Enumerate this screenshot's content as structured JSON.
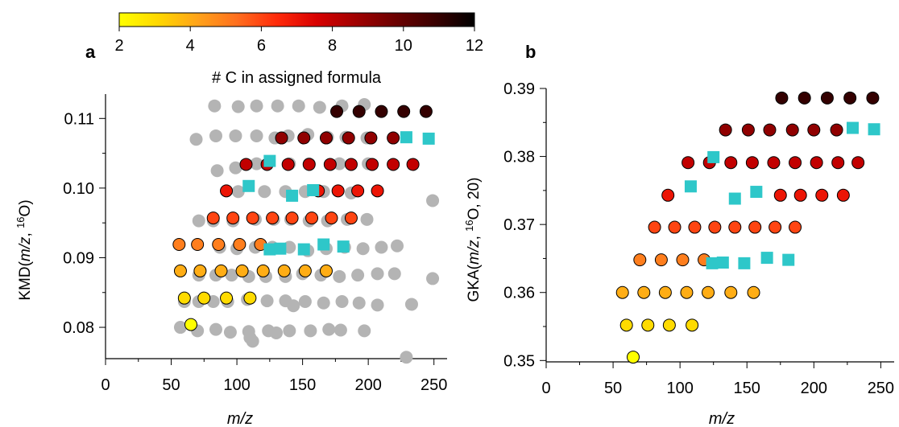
{
  "colorbar": {
    "label": "# C in assigned formula",
    "ticks": [
      "2",
      "4",
      "6",
      "8",
      "10",
      "12"
    ],
    "range": [
      2,
      12
    ],
    "colormap": [
      "#ffff00",
      "#ffd700",
      "#ffa21a",
      "#ff6e1e",
      "#ff2a0a",
      "#d80000",
      "#a00000",
      "#6b0000",
      "#3a0000",
      "#000000"
    ]
  },
  "chart_data": [
    {
      "panel_label": "a",
      "type": "scatter",
      "xlabel": "m/z",
      "ylabel": "KMD(m/z, 16O)",
      "xlim": [
        0,
        260
      ],
      "ylim": [
        0.0755,
        0.1135
      ],
      "xticks": [
        "0",
        "50",
        "100",
        "150",
        "200",
        "250"
      ],
      "xtick_values": [
        0,
        50,
        100,
        150,
        200,
        250
      ],
      "yticks": [
        "0.08",
        "0.09",
        "0.10",
        "0.11"
      ],
      "ytick_values": [
        0.08,
        0.09,
        0.1,
        0.11
      ],
      "series": [
        {
          "style": "grey-circle",
          "color": "#b4b4b4",
          "points": [
            [
              57,
              0.08
            ],
            [
              70,
              0.0795
            ],
            [
              84,
              0.0797
            ],
            [
              95,
              0.0793
            ],
            [
              109,
              0.0794
            ],
            [
              110,
              0.0785
            ],
            [
              112,
              0.078
            ],
            [
              124,
              0.0795
            ],
            [
              130,
              0.0792
            ],
            [
              140,
              0.0795
            ],
            [
              156,
              0.0795
            ],
            [
              170,
              0.0797
            ],
            [
              179,
              0.0796
            ],
            [
              197,
              0.0795
            ],
            [
              60,
              0.0837
            ],
            [
              71,
              0.0837
            ],
            [
              82,
              0.0837
            ],
            [
              93,
              0.0837
            ],
            [
              108,
              0.084
            ],
            [
              123,
              0.0838
            ],
            [
              137,
              0.0838
            ],
            [
              143,
              0.0831
            ],
            [
              152,
              0.0837
            ],
            [
              166,
              0.0835
            ],
            [
              180,
              0.0837
            ],
            [
              193,
              0.0835
            ],
            [
              207,
              0.0832
            ],
            [
              233,
              0.0833
            ],
            [
              71,
              0.0875
            ],
            [
              84,
              0.0875
            ],
            [
              96,
              0.0875
            ],
            [
              109,
              0.0873
            ],
            [
              122,
              0.0873
            ],
            [
              137,
              0.0873
            ],
            [
              150,
              0.0877
            ],
            [
              164,
              0.0875
            ],
            [
              178,
              0.0873
            ],
            [
              192,
              0.0875
            ],
            [
              207,
              0.0877
            ],
            [
              220,
              0.0877
            ],
            [
              249,
              0.087
            ],
            [
              87,
              0.0915
            ],
            [
              100,
              0.0913
            ],
            [
              114,
              0.0915
            ],
            [
              127,
              0.0915
            ],
            [
              140,
              0.0915
            ],
            [
              154,
              0.091
            ],
            [
              168,
              0.0913
            ],
            [
              182,
              0.0915
            ],
            [
              196,
              0.0913
            ],
            [
              210,
              0.0915
            ],
            [
              222,
              0.0917
            ],
            [
              71,
              0.0953
            ],
            [
              82,
              0.0953
            ],
            [
              97,
              0.0953
            ],
            [
              114,
              0.0955
            ],
            [
              128,
              0.0955
            ],
            [
              141,
              0.0955
            ],
            [
              155,
              0.0953
            ],
            [
              169,
              0.0953
            ],
            [
              184,
              0.0955
            ],
            [
              199,
              0.0955
            ],
            [
              101,
              0.0995
            ],
            [
              121,
              0.0995
            ],
            [
              137,
              0.0995
            ],
            [
              152,
              0.0995
            ],
            [
              166,
              0.0995
            ],
            [
              187,
              0.0993
            ],
            [
              249,
              0.0982
            ],
            [
              85,
              0.1025
            ],
            [
              99,
              0.1029
            ],
            [
              115,
              0.1035
            ],
            [
              140,
              0.1035
            ],
            [
              155,
              0.1035
            ],
            [
              178,
              0.1035
            ],
            [
              200,
              0.1035
            ],
            [
              69,
              0.107
            ],
            [
              84,
              0.1075
            ],
            [
              99,
              0.1075
            ],
            [
              115,
              0.1075
            ],
            [
              129,
              0.1072
            ],
            [
              139,
              0.1075
            ],
            [
              154,
              0.1077
            ],
            [
              169,
              0.1073
            ],
            [
              183,
              0.1073
            ],
            [
              199,
              0.1072
            ],
            [
              83,
              0.1118
            ],
            [
              101,
              0.1117
            ],
            [
              115,
              0.1118
            ],
            [
              131,
              0.1118
            ],
            [
              147,
              0.1118
            ],
            [
              163,
              0.1116
            ],
            [
              180,
              0.1118
            ],
            [
              197,
              0.112
            ],
            [
              229,
              0.0757
            ]
          ]
        },
        {
          "style": "colored-circle",
          "points": [
            [
              65,
              0.0804,
              2
            ],
            [
              60,
              0.0842,
              3
            ],
            [
              75,
              0.0842,
              3
            ],
            [
              92,
              0.0842,
              3
            ],
            [
              110,
              0.0842,
              3
            ],
            [
              57,
              0.0881,
              4
            ],
            [
              72,
              0.0881,
              4
            ],
            [
              88,
              0.0881,
              4
            ],
            [
              104,
              0.0881,
              4
            ],
            [
              120,
              0.0881,
              4
            ],
            [
              136,
              0.0881,
              4
            ],
            [
              152,
              0.0881,
              4
            ],
            [
              168,
              0.0881,
              4
            ],
            [
              56,
              0.0919,
              5
            ],
            [
              70,
              0.0919,
              5
            ],
            [
              86,
              0.0919,
              5
            ],
            [
              102,
              0.0919,
              5
            ],
            [
              118,
              0.0919,
              5
            ],
            [
              82,
              0.0957,
              6
            ],
            [
              97,
              0.0957,
              6
            ],
            [
              112,
              0.0957,
              6
            ],
            [
              127,
              0.0957,
              6
            ],
            [
              142,
              0.0957,
              6
            ],
            [
              157,
              0.0957,
              6
            ],
            [
              172,
              0.0957,
              6
            ],
            [
              187,
              0.0957,
              6
            ],
            [
              92,
              0.0996,
              7
            ],
            [
              162,
              0.0996,
              7
            ],
            [
              177,
              0.0996,
              7
            ],
            [
              192,
              0.0996,
              7
            ],
            [
              207,
              0.0996,
              7
            ],
            [
              107,
              0.1034,
              8
            ],
            [
              123,
              0.1034,
              8
            ],
            [
              139,
              0.1034,
              8
            ],
            [
              155,
              0.1034,
              8
            ],
            [
              171,
              0.1034,
              8
            ],
            [
              187,
              0.1034,
              8
            ],
            [
              203,
              0.1034,
              8
            ],
            [
              219,
              0.1034,
              8
            ],
            [
              234,
              0.1034,
              8
            ],
            [
              134,
              0.1072,
              9
            ],
            [
              151,
              0.1072,
              9
            ],
            [
              168,
              0.1072,
              9
            ],
            [
              185,
              0.1072,
              9
            ],
            [
              202,
              0.1072,
              9
            ],
            [
              219,
              0.1072,
              9
            ],
            [
              176,
              0.111,
              11
            ],
            [
              193,
              0.111,
              11
            ],
            [
              210,
              0.111,
              11
            ],
            [
              227,
              0.111,
              11
            ],
            [
              244,
              0.111,
              11
            ]
          ]
        },
        {
          "style": "cyan-square",
          "color": "#2ec7c9",
          "points": [
            [
              125,
              0.0912
            ],
            [
              133,
              0.0913
            ],
            [
              151,
              0.0912
            ],
            [
              166,
              0.0919
            ],
            [
              181,
              0.0916
            ],
            [
              109,
              0.1003
            ],
            [
              142,
              0.0989
            ],
            [
              158,
              0.0997
            ],
            [
              125,
              0.1039
            ],
            [
              229,
              0.1073
            ],
            [
              246,
              0.1071
            ]
          ]
        }
      ]
    },
    {
      "panel_label": "b",
      "type": "scatter",
      "xlabel": "m/z",
      "ylabel": "GKA(m/z, 16O, 20)",
      "xlim": [
        0,
        260
      ],
      "ylim": [
        0.3498,
        0.39
      ],
      "xticks": [
        "0",
        "50",
        "100",
        "150",
        "200",
        "250"
      ],
      "xtick_values": [
        0,
        50,
        100,
        150,
        200,
        250
      ],
      "yticks": [
        "0.35",
        "0.36",
        "0.37",
        "0.38",
        "0.39"
      ],
      "ytick_values": [
        0.35,
        0.36,
        0.37,
        0.38,
        0.39
      ],
      "series": [
        {
          "style": "colored-circle",
          "points": [
            [
              65,
              0.3505,
              2
            ],
            [
              60,
              0.3552,
              3
            ],
            [
              76,
              0.3552,
              3
            ],
            [
              92,
              0.3552,
              3
            ],
            [
              109,
              0.3552,
              3
            ],
            [
              57,
              0.36,
              4
            ],
            [
              73,
              0.36,
              4
            ],
            [
              89,
              0.36,
              4
            ],
            [
              105,
              0.36,
              4
            ],
            [
              121,
              0.36,
              4
            ],
            [
              138,
              0.36,
              4
            ],
            [
              155,
              0.36,
              4
            ],
            [
              70,
              0.3648,
              5
            ],
            [
              86,
              0.3648,
              5
            ],
            [
              102,
              0.3648,
              5
            ],
            [
              118,
              0.3648,
              5
            ],
            [
              81,
              0.3696,
              6
            ],
            [
              96,
              0.3696,
              6
            ],
            [
              111,
              0.3696,
              6
            ],
            [
              126,
              0.3696,
              6
            ],
            [
              141,
              0.3696,
              6
            ],
            [
              156,
              0.3696,
              6
            ],
            [
              171,
              0.3696,
              6
            ],
            [
              186,
              0.3696,
              6
            ],
            [
              91,
              0.3743,
              7
            ],
            [
              175,
              0.3743,
              7
            ],
            [
              190,
              0.3743,
              7
            ],
            [
              206,
              0.3743,
              7
            ],
            [
              222,
              0.3743,
              7
            ],
            [
              106,
              0.3791,
              8
            ],
            [
              122,
              0.3791,
              8
            ],
            [
              138,
              0.3791,
              8
            ],
            [
              154,
              0.3791,
              8
            ],
            [
              170,
              0.3791,
              8
            ],
            [
              186,
              0.3791,
              8
            ],
            [
              202,
              0.3791,
              8
            ],
            [
              218,
              0.3791,
              8
            ],
            [
              233,
              0.3791,
              8
            ],
            [
              134,
              0.3839,
              9
            ],
            [
              151,
              0.3839,
              9
            ],
            [
              167,
              0.3839,
              9
            ],
            [
              184,
              0.3839,
              9
            ],
            [
              200,
              0.3839,
              9
            ],
            [
              217,
              0.3839,
              9
            ],
            [
              176,
              0.3886,
              11
            ],
            [
              193,
              0.3886,
              11
            ],
            [
              210,
              0.3886,
              11
            ],
            [
              227,
              0.3886,
              11
            ],
            [
              244,
              0.3886,
              11
            ]
          ]
        },
        {
          "style": "cyan-square",
          "color": "#2ec7c9",
          "points": [
            [
              124,
              0.3643
            ],
            [
              132,
              0.3644
            ],
            [
              148,
              0.3643
            ],
            [
              165,
              0.3651
            ],
            [
              181,
              0.3648
            ],
            [
              108,
              0.3756
            ],
            [
              141,
              0.3738
            ],
            [
              157,
              0.3748
            ],
            [
              125,
              0.3799
            ],
            [
              229,
              0.3842
            ],
            [
              245,
              0.384
            ]
          ]
        }
      ]
    }
  ]
}
